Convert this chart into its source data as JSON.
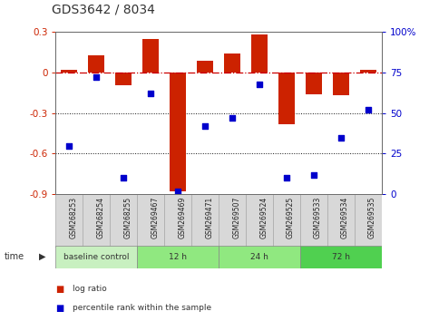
{
  "title": "GDS3642 / 8034",
  "samples": [
    "GSM268253",
    "GSM268254",
    "GSM268255",
    "GSM269467",
    "GSM269469",
    "GSM269471",
    "GSM269507",
    "GSM269524",
    "GSM269525",
    "GSM269533",
    "GSM269534",
    "GSM269535"
  ],
  "log_ratio": [
    0.02,
    0.13,
    -0.09,
    0.25,
    -0.88,
    0.09,
    0.14,
    0.28,
    -0.38,
    -0.16,
    -0.17,
    0.02
  ],
  "percentile_rank": [
    30,
    72,
    10,
    62,
    2,
    42,
    47,
    68,
    10,
    12,
    35,
    52
  ],
  "groups": [
    {
      "label": "baseline control",
      "start": 0,
      "end": 3,
      "color": "#c8f0c0"
    },
    {
      "label": "12 h",
      "start": 3,
      "end": 6,
      "color": "#90e880"
    },
    {
      "label": "24 h",
      "start": 6,
      "end": 9,
      "color": "#90e880"
    },
    {
      "label": "72 h",
      "start": 9,
      "end": 12,
      "color": "#50d050"
    }
  ],
  "ylim_left": [
    -0.9,
    0.3
  ],
  "ylim_right": [
    0,
    100
  ],
  "yticks_left": [
    -0.9,
    -0.6,
    -0.3,
    0.0,
    0.3
  ],
  "yticks_right": [
    0,
    25,
    50,
    75,
    100
  ],
  "bar_color": "#cc2200",
  "dot_color": "#0000cc",
  "hline_color": "#cc0000",
  "grid_color": "#111111",
  "bg_color": "#ffffff",
  "plot_bg": "#ffffff",
  "sample_box_color": "#d8d8d8",
  "sample_box_edge": "#aaaaaa"
}
